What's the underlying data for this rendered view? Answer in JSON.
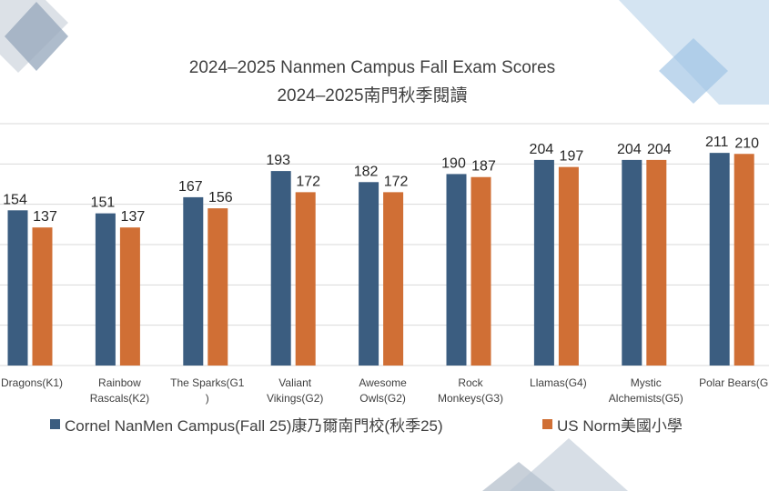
{
  "colors": {
    "series1": "#3b5d80",
    "series2": "#d06f35",
    "grid": "#d9d9d9",
    "decor_dark": "#5e7a9a",
    "decor_light": "#9dc1e3"
  },
  "chart_data": {
    "type": "bar",
    "title": "2024–2025 Nanmen Campus Fall Exam Scores",
    "subtitle": "2024–2025南門秋季閱讀",
    "categories": [
      [
        "Dragons(K1)"
      ],
      [
        "Rainbow",
        "Rascals(K2)"
      ],
      [
        "The Sparks(G1",
        ")"
      ],
      [
        "Valiant",
        "Vikings(G2)"
      ],
      [
        "Awesome",
        "Owls(G2)"
      ],
      [
        "Rock",
        "Monkeys(G3)"
      ],
      [
        "Llamas(G4)"
      ],
      [
        "Mystic",
        "Alchemists(G5)"
      ],
      [
        "Polar Bears(G"
      ]
    ],
    "series": [
      {
        "name": "Cornel NanMen Campus(Fall 25)康乃爾南門校(秋季25)",
        "values": [
          154,
          151,
          167,
          193,
          182,
          190,
          204,
          204,
          211
        ]
      },
      {
        "name": "US Norm美國小學",
        "values": [
          137,
          137,
          156,
          172,
          172,
          187,
          197,
          204,
          210
        ]
      }
    ],
    "value_labels": [
      [
        "154",
        "151",
        "167",
        "193",
        "182",
        "190",
        "204",
        "204",
        "211"
      ],
      [
        "137",
        "137",
        "156",
        "172",
        "172",
        "187",
        "197",
        "204",
        "210"
      ]
    ],
    "ylim": [
      0,
      240
    ],
    "grid": true,
    "legend_position": "bottom"
  }
}
